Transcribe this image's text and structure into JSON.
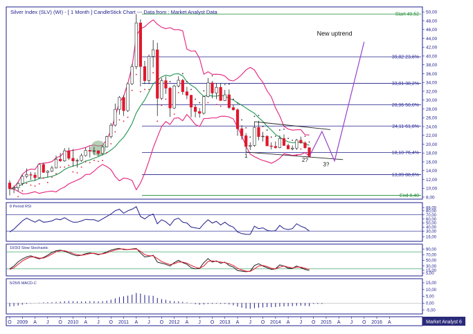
{
  "title": "Silver Index (SLV) (WI) -  [ 1 Month ] CandleStick Chart  ---  Data from : Market Analyst Data",
  "watermark": "Market Analyst 6",
  "colors": {
    "up": "#ffffff",
    "down": "#e0182d",
    "bollinger": "#e4207a",
    "ma": "#1e9450",
    "fib_line": "#1c1c8c",
    "fib_text": "#3030a0",
    "fib_start_end": "#1a8a30",
    "rsi": "#1c1c8c",
    "stoch_k": "#202020",
    "stoch_d": "#e0182d",
    "macd": "#1c1c8c",
    "projection": "#9a3fc8",
    "grid": "#1c1c8c"
  },
  "chart_data": [
    {
      "type": "candlestick",
      "title": "Silver Index (SLV) (WI) -  [ 1 Month ] CandleStick Chart  ---  Data from : Market Analyst Data",
      "y_ticks": [
        "50,00",
        "48,00",
        "46,00",
        "44,00",
        "42,00",
        "40,00",
        "38,00",
        "36,00",
        "34,00",
        "32,00",
        "30,00",
        "28,00",
        "26,00",
        "24,00",
        "22,00",
        "20,00",
        "18,00",
        "16,00",
        "14,00",
        "12,00",
        "10,00",
        "8,00"
      ],
      "ylim": [
        8,
        50.5
      ],
      "x_range": [
        "2008-10",
        "2016-11"
      ],
      "x_ticks": [
        "O",
        "2009",
        "A",
        "J",
        "O",
        "2010",
        "A",
        "J",
        "O",
        "2011",
        "A",
        "J",
        "O",
        "2012",
        "A",
        "J",
        "O",
        "2013",
        "A",
        "J",
        "O",
        "2014",
        "A",
        "J",
        "O",
        "2015",
        "A",
        "J",
        "O",
        "2016",
        "A"
      ],
      "candles": [
        {
          "d": "2008-10",
          "o": 11.2,
          "h": 11.8,
          "l": 8.4,
          "c": 9.9
        },
        {
          "d": "2008-11",
          "o": 9.9,
          "h": 10.6,
          "l": 8.9,
          "c": 10.1
        },
        {
          "d": "2008-12",
          "o": 10.1,
          "h": 11.4,
          "l": 9.3,
          "c": 11.1
        },
        {
          "d": "2009-01",
          "o": 11.1,
          "h": 13.1,
          "l": 10.6,
          "c": 12.7
        },
        {
          "d": "2009-02",
          "o": 12.7,
          "h": 14.5,
          "l": 12.3,
          "c": 13.1
        },
        {
          "d": "2009-03",
          "o": 13.1,
          "h": 13.7,
          "l": 11.9,
          "c": 13.0
        },
        {
          "d": "2009-04",
          "o": 13.0,
          "h": 13.6,
          "l": 11.7,
          "c": 12.4
        },
        {
          "d": "2009-05",
          "o": 12.4,
          "h": 15.6,
          "l": 12.2,
          "c": 15.4
        },
        {
          "d": "2009-06",
          "o": 15.4,
          "h": 15.8,
          "l": 13.5,
          "c": 13.6
        },
        {
          "d": "2009-07",
          "o": 13.6,
          "h": 14.1,
          "l": 12.5,
          "c": 13.9
        },
        {
          "d": "2009-08",
          "o": 13.9,
          "h": 15.1,
          "l": 13.7,
          "c": 14.6
        },
        {
          "d": "2009-09",
          "o": 14.6,
          "h": 17.4,
          "l": 14.5,
          "c": 16.6
        },
        {
          "d": "2009-10",
          "o": 16.6,
          "h": 18.0,
          "l": 16.0,
          "c": 16.2
        },
        {
          "d": "2009-11",
          "o": 16.2,
          "h": 19.1,
          "l": 16.0,
          "c": 18.5
        },
        {
          "d": "2009-12",
          "o": 18.5,
          "h": 19.2,
          "l": 16.4,
          "c": 16.8
        },
        {
          "d": "2010-01",
          "o": 16.8,
          "h": 18.9,
          "l": 14.9,
          "c": 16.2
        },
        {
          "d": "2010-02",
          "o": 16.2,
          "h": 16.7,
          "l": 14.7,
          "c": 16.3
        },
        {
          "d": "2010-03",
          "o": 16.3,
          "h": 17.9,
          "l": 16.0,
          "c": 17.4
        },
        {
          "d": "2010-04",
          "o": 17.4,
          "h": 19.2,
          "l": 17.2,
          "c": 18.6
        },
        {
          "d": "2010-05",
          "o": 18.6,
          "h": 19.5,
          "l": 17.0,
          "c": 18.4
        },
        {
          "d": "2010-06",
          "o": 18.4,
          "h": 19.4,
          "l": 17.5,
          "c": 18.5
        },
        {
          "d": "2010-07",
          "o": 18.5,
          "h": 18.6,
          "l": 17.3,
          "c": 17.9
        },
        {
          "d": "2010-08",
          "o": 17.9,
          "h": 19.8,
          "l": 17.5,
          "c": 19.4
        },
        {
          "d": "2010-09",
          "o": 19.4,
          "h": 21.9,
          "l": 19.3,
          "c": 21.7
        },
        {
          "d": "2010-10",
          "o": 21.7,
          "h": 24.8,
          "l": 21.3,
          "c": 24.3
        },
        {
          "d": "2010-11",
          "o": 24.3,
          "h": 29.2,
          "l": 24.0,
          "c": 27.9
        },
        {
          "d": "2010-12",
          "o": 27.9,
          "h": 30.9,
          "l": 26.7,
          "c": 30.6
        },
        {
          "d": "2011-01",
          "o": 30.6,
          "h": 31.1,
          "l": 26.4,
          "c": 27.6
        },
        {
          "d": "2011-02",
          "o": 27.6,
          "h": 34.0,
          "l": 27.3,
          "c": 33.7
        },
        {
          "d": "2011-03",
          "o": 33.7,
          "h": 38.2,
          "l": 33.4,
          "c": 37.6
        },
        {
          "d": "2011-04",
          "o": 37.6,
          "h": 49.5,
          "l": 37.0,
          "c": 47.5
        },
        {
          "d": "2011-05",
          "o": 47.5,
          "h": 48.3,
          "l": 33.1,
          "c": 37.6
        },
        {
          "d": "2011-06",
          "o": 37.6,
          "h": 38.9,
          "l": 33.6,
          "c": 34.4
        },
        {
          "d": "2011-07",
          "o": 34.4,
          "h": 40.3,
          "l": 33.6,
          "c": 39.9
        },
        {
          "d": "2011-08",
          "o": 39.9,
          "h": 43.6,
          "l": 37.4,
          "c": 41.4
        },
        {
          "d": "2011-09",
          "o": 41.4,
          "h": 43.0,
          "l": 26.4,
          "c": 30.4
        },
        {
          "d": "2011-10",
          "o": 30.4,
          "h": 35.0,
          "l": 30.0,
          "c": 34.4
        },
        {
          "d": "2011-11",
          "o": 34.4,
          "h": 35.4,
          "l": 31.4,
          "c": 32.7
        },
        {
          "d": "2011-12",
          "o": 32.7,
          "h": 33.0,
          "l": 26.2,
          "c": 28.2
        },
        {
          "d": "2012-01",
          "o": 28.2,
          "h": 33.5,
          "l": 28.0,
          "c": 33.2
        },
        {
          "d": "2012-02",
          "o": 33.2,
          "h": 35.4,
          "l": 32.9,
          "c": 34.5
        },
        {
          "d": "2012-03",
          "o": 34.5,
          "h": 34.8,
          "l": 31.2,
          "c": 31.9
        },
        {
          "d": "2012-04",
          "o": 31.9,
          "h": 33.0,
          "l": 30.2,
          "c": 31.1
        },
        {
          "d": "2012-05",
          "o": 31.1,
          "h": 31.2,
          "l": 26.1,
          "c": 28.4
        },
        {
          "d": "2012-06",
          "o": 28.4,
          "h": 29.0,
          "l": 26.1,
          "c": 27.4
        },
        {
          "d": "2012-07",
          "o": 27.4,
          "h": 28.2,
          "l": 26.0,
          "c": 27.0
        },
        {
          "d": "2012-08",
          "o": 27.0,
          "h": 30.9,
          "l": 26.7,
          "c": 30.8
        },
        {
          "d": "2012-09",
          "o": 30.8,
          "h": 35.0,
          "l": 30.6,
          "c": 33.9
        },
        {
          "d": "2012-10",
          "o": 33.9,
          "h": 34.3,
          "l": 30.4,
          "c": 31.6
        },
        {
          "d": "2012-11",
          "o": 31.6,
          "h": 33.8,
          "l": 30.2,
          "c": 32.9
        },
        {
          "d": "2012-12",
          "o": 32.9,
          "h": 33.8,
          "l": 29.8,
          "c": 29.9
        },
        {
          "d": "2013-01",
          "o": 29.9,
          "h": 32.3,
          "l": 29.8,
          "c": 31.2
        },
        {
          "d": "2013-02",
          "o": 31.2,
          "h": 32.4,
          "l": 28.0,
          "c": 28.3
        },
        {
          "d": "2013-03",
          "o": 28.3,
          "h": 29.0,
          "l": 27.6,
          "c": 27.8
        },
        {
          "d": "2013-04",
          "o": 27.8,
          "h": 28.1,
          "l": 21.9,
          "c": 23.5
        },
        {
          "d": "2013-05",
          "o": 23.5,
          "h": 24.3,
          "l": 21.0,
          "c": 21.9
        },
        {
          "d": "2013-06",
          "o": 21.9,
          "h": 22.5,
          "l": 18.2,
          "c": 19.5
        },
        {
          "d": "2013-07",
          "o": 19.5,
          "h": 20.4,
          "l": 18.7,
          "c": 19.7
        },
        {
          "d": "2013-08",
          "o": 19.7,
          "h": 25.1,
          "l": 19.4,
          "c": 23.8
        },
        {
          "d": "2013-09",
          "o": 23.8,
          "h": 25.3,
          "l": 20.9,
          "c": 21.7
        },
        {
          "d": "2013-10",
          "o": 21.7,
          "h": 22.8,
          "l": 20.6,
          "c": 21.8
        },
        {
          "d": "2013-11",
          "o": 21.8,
          "h": 22.0,
          "l": 19.6,
          "c": 19.6
        },
        {
          "d": "2013-12",
          "o": 19.6,
          "h": 20.4,
          "l": 18.8,
          "c": 19.5
        },
        {
          "d": "2014-01",
          "o": 19.5,
          "h": 20.6,
          "l": 19.0,
          "c": 19.2
        },
        {
          "d": "2014-02",
          "o": 19.2,
          "h": 22.0,
          "l": 19.1,
          "c": 21.3
        },
        {
          "d": "2014-03",
          "o": 21.3,
          "h": 22.2,
          "l": 19.6,
          "c": 19.7
        },
        {
          "d": "2014-04",
          "o": 19.7,
          "h": 20.1,
          "l": 18.9,
          "c": 18.9
        },
        {
          "d": "2014-05",
          "o": 18.9,
          "h": 19.7,
          "l": 18.6,
          "c": 19.1
        },
        {
          "d": "2014-06",
          "o": 19.1,
          "h": 21.2,
          "l": 18.7,
          "c": 20.9
        },
        {
          "d": "2014-07",
          "o": 20.9,
          "h": 21.7,
          "l": 20.1,
          "c": 20.3
        },
        {
          "d": "2014-08",
          "o": 20.3,
          "h": 20.6,
          "l": 19.0,
          "c": 19.2
        },
        {
          "d": "2014-09",
          "o": 19.2,
          "h": 19.3,
          "l": 17.1,
          "c": 17.2
        }
      ],
      "fib_levels": [
        {
          "value": 49.52,
          "label": "Start 49,52",
          "kind": "start"
        },
        {
          "value": 39.82,
          "label": "39,82 23,6%",
          "kind": "fib"
        },
        {
          "value": 33.81,
          "label": "33,81 38,2%",
          "kind": "fib"
        },
        {
          "value": 28.96,
          "label": "28,96 50,0%",
          "kind": "fib"
        },
        {
          "value": 24.11,
          "label": "24,11 61,8%",
          "kind": "fib"
        },
        {
          "value": 18.1,
          "label": "18,10 76,4%",
          "kind": "fib"
        },
        {
          "value": 13.09,
          "label": "13,09 88,6%",
          "kind": "fib"
        },
        {
          "value": 8.4,
          "label": "End 8,40",
          "kind": "end"
        }
      ],
      "annotations": [
        {
          "text": "New uptrend",
          "d": "2015-03",
          "y": 44.6
        },
        {
          "text": "1",
          "d": "2013-06",
          "y": 16.9
        },
        {
          "text": "2?",
          "d": "2014-08",
          "y": 16.0
        },
        {
          "text": "3?",
          "d": "2015-01",
          "y": 15.0
        }
      ],
      "projection_path": [
        {
          "d": "2014-09",
          "y": 17.2
        },
        {
          "d": "2014-12",
          "y": 22.9
        },
        {
          "d": "2015-03",
          "y": 16.2
        },
        {
          "d": "2015-10",
          "y": 43.2
        }
      ],
      "trendlines": [
        {
          "from": {
            "d": "2013-08",
            "y": 25.1
          },
          "to": {
            "d": "2015-02",
            "y": 23.3
          }
        },
        {
          "from": {
            "d": "2013-06",
            "y": 18.2
          },
          "to": {
            "d": "2015-05",
            "y": 16.5
          }
        }
      ],
      "highlight_circle": {
        "d": "2010-07",
        "y": 19.1
      }
    },
    {
      "type": "line",
      "title": "8 Period RSI",
      "y_ticks": [
        "88,00",
        "80,00",
        "70,00",
        "60,00",
        "50,00",
        "40,00",
        "30,00",
        "16,00"
      ],
      "ylim": [
        10,
        95
      ],
      "reference_lines": [
        70,
        30
      ],
      "series": [
        {
          "values": [
            28,
            35,
            45,
            55,
            62,
            57,
            52,
            58,
            52,
            53,
            55,
            60,
            58,
            63,
            57,
            52,
            52,
            55,
            59,
            58,
            58,
            54,
            60,
            66,
            72,
            80,
            84,
            74,
            80,
            84,
            90,
            66,
            60,
            68,
            72,
            48,
            58,
            53,
            44,
            58,
            62,
            52,
            50,
            40,
            38,
            36,
            48,
            58,
            50,
            54,
            45,
            52,
            44,
            40,
            28,
            24,
            22,
            22,
            42,
            36,
            38,
            32,
            30,
            31,
            44,
            36,
            34,
            36,
            48,
            42,
            38,
            30
          ]
        }
      ]
    },
    {
      "type": "line",
      "title": "10/3/3 Slow Stochastic",
      "y_ticks": [
        "90,00",
        "70,00",
        "50,00",
        "30,00",
        "15,00",
        "5,00"
      ],
      "ylim": [
        0,
        100
      ],
      "reference_lines": [
        80,
        20
      ],
      "series": [
        {
          "values": [
            20,
            30,
            45,
            55,
            62,
            66,
            60,
            55,
            60,
            68,
            78,
            84,
            86,
            82,
            76,
            70,
            66,
            68,
            74,
            76,
            74,
            70,
            74,
            80,
            86,
            90,
            92,
            88,
            88,
            90,
            92,
            76,
            62,
            64,
            68,
            44,
            40,
            36,
            30,
            42,
            50,
            42,
            36,
            24,
            20,
            22,
            42,
            56,
            44,
            48,
            40,
            44,
            32,
            26,
            14,
            12,
            10,
            12,
            32,
            38,
            30,
            24,
            18,
            20,
            34,
            30,
            22,
            22,
            30,
            24,
            18,
            14
          ]
        },
        {
          "values": [
            18,
            24,
            36,
            48,
            56,
            62,
            62,
            58,
            58,
            64,
            72,
            80,
            84,
            84,
            80,
            74,
            70,
            68,
            70,
            74,
            75,
            72,
            73,
            76,
            82,
            86,
            90,
            90,
            88,
            89,
            90,
            82,
            70,
            66,
            66,
            56,
            46,
            40,
            35,
            38,
            44,
            44,
            40,
            32,
            26,
            22,
            30,
            46,
            48,
            46,
            44,
            42,
            38,
            32,
            22,
            16,
            12,
            11,
            20,
            30,
            32,
            28,
            22,
            20,
            26,
            30,
            26,
            23,
            26,
            26,
            22,
            18
          ]
        }
      ]
    },
    {
      "type": "bar",
      "title": "5/25/5 MACD-C",
      "y_ticks": [
        "15,00",
        "10,00",
        "5,00",
        "0,00",
        "-5,00"
      ],
      "ylim": [
        -7,
        16
      ],
      "series": [
        {
          "values": [
            -2.5,
            -2.2,
            -1.8,
            -1.2,
            -0.6,
            -0.2,
            0.1,
            0.3,
            0.5,
            0.6,
            0.7,
            0.9,
            1.1,
            1.4,
            1.5,
            1.4,
            1.2,
            1.2,
            1.3,
            1.4,
            1.4,
            1.3,
            1.4,
            1.8,
            2.5,
            3.5,
            4.5,
            5.0,
            5.5,
            6.2,
            7.5,
            7.0,
            6.0,
            5.6,
            5.4,
            3.8,
            3.0,
            2.4,
            1.6,
            1.4,
            1.3,
            0.9,
            0.5,
            -0.2,
            -0.8,
            -1.2,
            -1.0,
            -0.6,
            -0.6,
            -0.4,
            -0.6,
            -0.6,
            -1.0,
            -1.6,
            -2.6,
            -3.4,
            -4.0,
            -4.2,
            -3.8,
            -3.4,
            -3.2,
            -3.0,
            -3.0,
            -2.9,
            -2.6,
            -2.4,
            -2.3,
            -2.2,
            -2.0,
            -1.9,
            -2.0,
            -2.3
          ]
        }
      ]
    }
  ]
}
